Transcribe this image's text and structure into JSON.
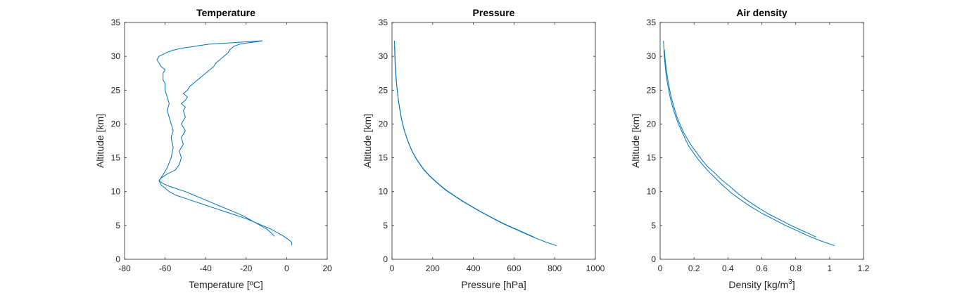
{
  "chart_data": [
    {
      "type": "line",
      "title": "Temperature",
      "xlabel": "Temperature [ºC]",
      "ylabel": "Altitude [km]",
      "xlim": [
        -80,
        20
      ],
      "ylim": [
        0,
        35
      ],
      "xticks": [
        -80,
        -60,
        -40,
        -20,
        0,
        20
      ],
      "yticks": [
        0,
        5,
        10,
        15,
        20,
        25,
        30,
        35
      ],
      "grid": false,
      "series": [
        {
          "x": [
            2.5,
            2.5,
            0.5,
            -2,
            -5,
            -8,
            -12,
            -16,
            -20,
            -25,
            -30,
            -35,
            -40,
            -45,
            -50,
            -55,
            -58,
            -60,
            -62,
            -63,
            -61,
            -59,
            -57,
            -56,
            -57,
            -56,
            -57,
            -58,
            -59,
            -58,
            -59,
            -60,
            -60,
            -61,
            -61,
            -61,
            -60,
            -62,
            -63,
            -64,
            -63,
            -61,
            -59,
            -56,
            -52,
            -47,
            -43,
            -38,
            -33,
            -27,
            -22,
            -17,
            -12
          ],
          "y": [
            2.1,
            2.5,
            3.0,
            3.5,
            4.0,
            4.5,
            5.0,
            5.5,
            6.0,
            6.5,
            7.0,
            7.5,
            8.0,
            8.5,
            9.0,
            9.5,
            10.0,
            10.5,
            11.0,
            11.6,
            12.5,
            13.5,
            15.0,
            16.5,
            18.0,
            19.0,
            20.0,
            21.0,
            22.0,
            23.0,
            24.0,
            25.0,
            26.0,
            26.5,
            27.0,
            27.5,
            28.0,
            28.5,
            29.0,
            29.5,
            30.0,
            30.3,
            30.6,
            30.9,
            31.2,
            31.4,
            31.6,
            31.8,
            31.9,
            32.0,
            32.1,
            32.2,
            32.3
          ]
        },
        {
          "x": [
            -6,
            -8,
            -10,
            -13,
            -16,
            -19,
            -22,
            -26,
            -30,
            -34,
            -38,
            -42,
            -46,
            -50,
            -54,
            -58,
            -61,
            -63,
            -62,
            -59,
            -55,
            -53,
            -52,
            -53,
            -51,
            -52,
            -50,
            -52,
            -50,
            -51,
            -50,
            -52,
            -50,
            -49,
            -51,
            -49,
            -48,
            -46,
            -44,
            -42,
            -40,
            -38,
            -36,
            -35,
            -33,
            -31,
            -29,
            -28,
            -26,
            -23,
            -19,
            -16,
            -12
          ],
          "y": [
            3.4,
            4.0,
            4.5,
            5.0,
            5.5,
            6.0,
            6.5,
            7.0,
            7.5,
            8.0,
            8.5,
            9.0,
            9.5,
            10.0,
            10.4,
            10.8,
            11.2,
            11.6,
            12.0,
            12.6,
            13.2,
            14.0,
            15.0,
            16.0,
            17.0,
            18.0,
            19.0,
            20.0,
            21.0,
            22.0,
            22.5,
            23.0,
            23.5,
            24.0,
            24.5,
            25.0,
            25.5,
            26.0,
            26.5,
            27.0,
            27.5,
            28.0,
            28.5,
            29.0,
            29.5,
            30.0,
            30.5,
            31.0,
            31.5,
            31.8,
            32.0,
            32.1,
            32.3
          ]
        }
      ]
    },
    {
      "type": "line",
      "title": "Pressure",
      "xlabel": "Pressure [hPa]",
      "ylabel": "Altitude [km]",
      "xlim": [
        0,
        1000
      ],
      "ylim": [
        0,
        35
      ],
      "xticks": [
        0,
        200,
        400,
        600,
        800,
        1000
      ],
      "yticks": [
        0,
        5,
        10,
        15,
        20,
        25,
        30,
        35
      ],
      "grid": false,
      "series": [
        {
          "x": [
            810,
            760,
            700,
            640,
            580,
            530,
            480,
            430,
            385,
            345,
            305,
            270,
            240,
            210,
            185,
            160,
            140,
            120,
            103,
            88,
            75,
            63,
            53,
            45,
            38,
            32,
            27,
            23,
            19,
            16,
            14,
            12
          ],
          "y": [
            2.0,
            2.5,
            3.2,
            4.0,
            4.8,
            5.5,
            6.3,
            7.1,
            7.9,
            8.6,
            9.4,
            10.1,
            10.8,
            11.6,
            12.3,
            13.1,
            13.9,
            14.8,
            15.7,
            16.7,
            17.7,
            18.8,
            19.9,
            21.0,
            22.2,
            23.4,
            24.6,
            25.8,
            27.0,
            28.5,
            30.0,
            32.3
          ]
        },
        {
          "x": [
            700,
            640,
            580,
            530,
            480,
            430,
            385,
            345,
            305,
            270,
            240,
            210,
            185,
            160,
            140,
            120,
            103,
            88,
            75,
            63,
            53,
            45,
            38,
            32,
            27,
            23,
            20,
            17,
            15,
            13
          ],
          "y": [
            3.25,
            4.05,
            4.85,
            5.55,
            6.35,
            7.15,
            7.95,
            8.65,
            9.45,
            10.15,
            10.85,
            11.65,
            12.35,
            13.15,
            13.95,
            14.85,
            15.75,
            16.75,
            17.75,
            18.85,
            19.95,
            21.05,
            22.25,
            23.45,
            24.65,
            25.85,
            27.0,
            28.5,
            30.0,
            31.5
          ]
        }
      ]
    },
    {
      "type": "line",
      "title": "Air density",
      "xlabel": "Density [kg/m",
      "xlabel_sup": "3",
      "xlabel_end": "]",
      "ylabel": "Altitude [km]",
      "xlim": [
        0,
        1.2
      ],
      "ylim": [
        0,
        35
      ],
      "xticks": [
        "0",
        "0.2",
        "0.4",
        "0.6",
        "0.8",
        "1",
        "1.2"
      ],
      "yticks": [
        0,
        5,
        10,
        15,
        20,
        25,
        30,
        35
      ],
      "grid": false,
      "series": [
        {
          "x": [
            1.03,
            0.95,
            0.88,
            0.81,
            0.74,
            0.67,
            0.6,
            0.54,
            0.48,
            0.42,
            0.37,
            0.33,
            0.29,
            0.26,
            0.23,
            0.2,
            0.17,
            0.15,
            0.13,
            0.11,
            0.09,
            0.075,
            0.06,
            0.05,
            0.04,
            0.032,
            0.025,
            0.02
          ],
          "y": [
            2.0,
            2.7,
            3.4,
            4.2,
            5.0,
            5.9,
            6.8,
            7.7,
            8.7,
            9.8,
            10.9,
            11.9,
            12.9,
            13.7,
            14.6,
            15.6,
            16.7,
            17.7,
            18.8,
            19.9,
            21.2,
            22.4,
            23.8,
            25.1,
            26.5,
            28.0,
            30.0,
            32.3
          ]
        },
        {
          "x": [
            0.92,
            0.85,
            0.78,
            0.71,
            0.64,
            0.58,
            0.52,
            0.46,
            0.41,
            0.36,
            0.32,
            0.28,
            0.25,
            0.22,
            0.19,
            0.165,
            0.14,
            0.12,
            0.1,
            0.085,
            0.07,
            0.058,
            0.048,
            0.038,
            0.03,
            0.025
          ],
          "y": [
            3.3,
            4.1,
            4.9,
            5.8,
            6.7,
            7.6,
            8.6,
            9.7,
            10.8,
            11.8,
            12.8,
            13.7,
            14.6,
            15.6,
            16.6,
            17.6,
            18.7,
            19.8,
            21.0,
            22.2,
            23.5,
            24.8,
            26.2,
            27.7,
            29.5,
            31.0
          ]
        }
      ]
    }
  ]
}
